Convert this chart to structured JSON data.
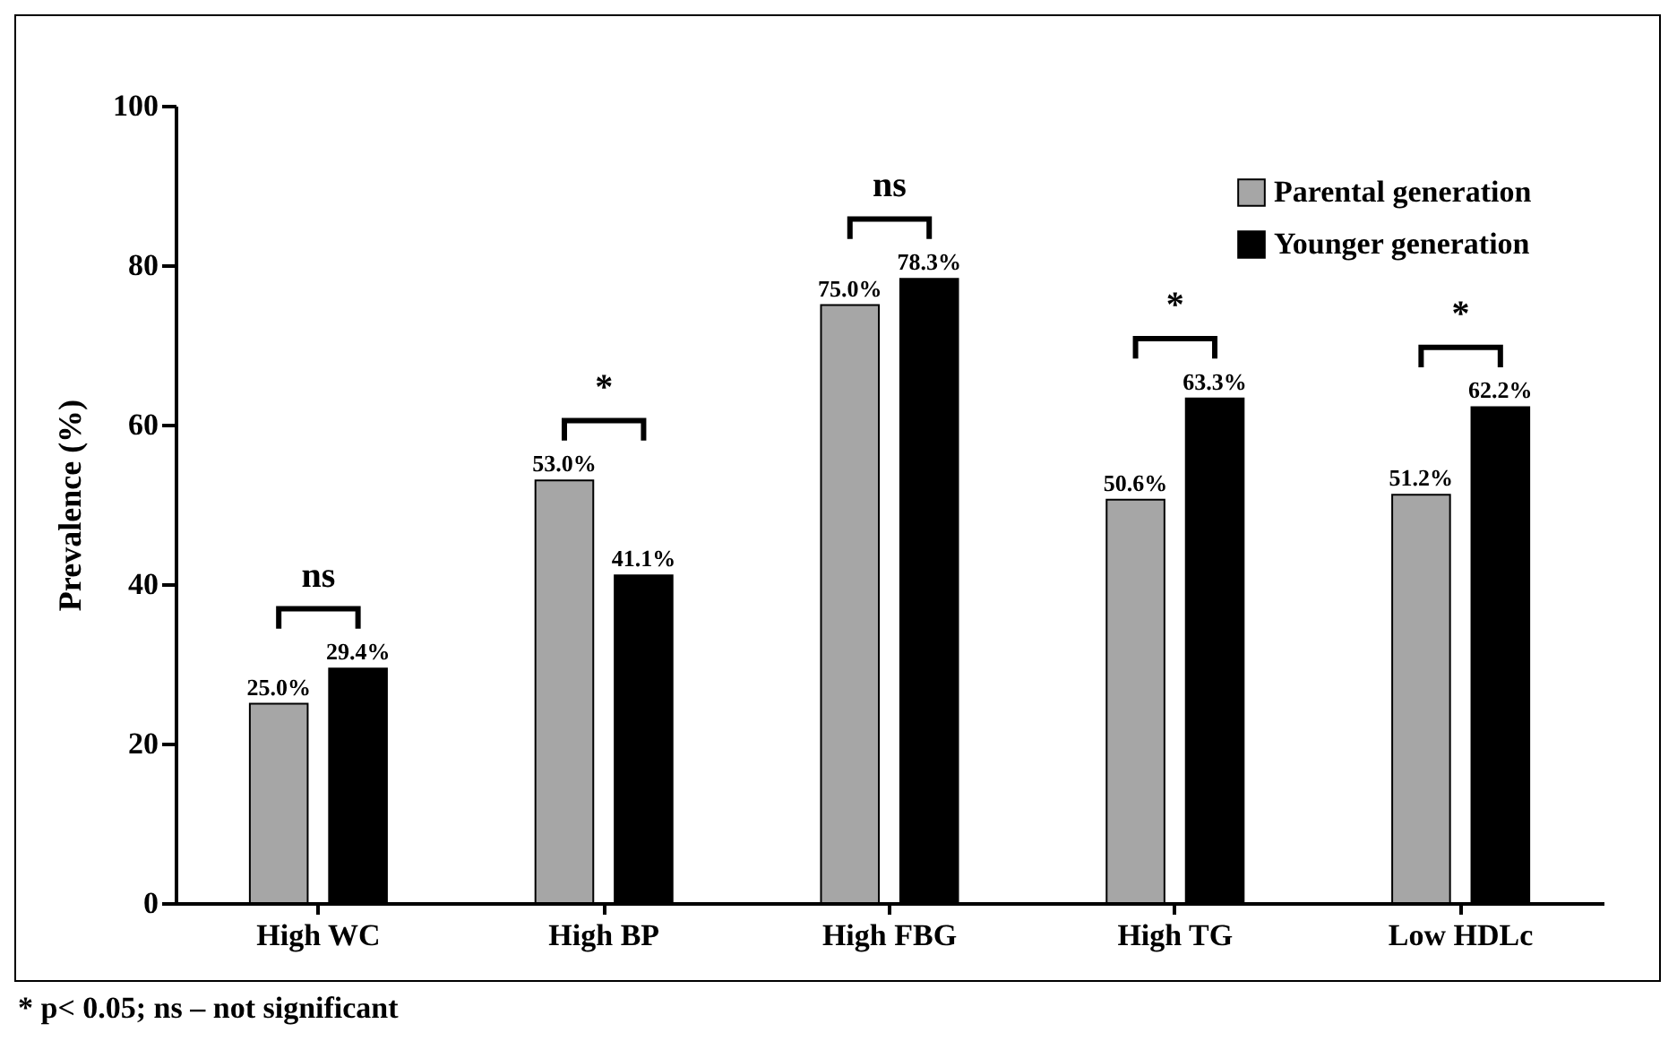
{
  "chart_data": {
    "type": "bar",
    "ylabel": "Prevalence (%)",
    "categories": [
      "High WC",
      "High BP",
      "High FBG",
      "High TG",
      "Low HDLc"
    ],
    "series": [
      {
        "name": "Parental generation",
        "color": "#a6a6a6",
        "values": [
          25.0,
          53.0,
          75.0,
          50.6,
          51.2
        ],
        "value_labels": [
          "25.0%",
          "53.0%",
          "75.0%",
          "50.6%",
          "51.2%"
        ]
      },
      {
        "name": "Younger generation",
        "color": "#000000",
        "values": [
          29.4,
          41.1,
          78.3,
          63.3,
          62.2
        ],
        "value_labels": [
          "29.4%",
          "41.1%",
          "78.3%",
          "63.3%",
          "62.2%"
        ]
      }
    ],
    "ylim": [
      0,
      100
    ],
    "yticks": [
      0,
      20,
      40,
      60,
      80,
      100
    ],
    "legend": "top right",
    "annotations": [
      "ns",
      "*",
      "ns",
      "*",
      "*",
      "* p< 0.05; ns – not significant"
    ]
  }
}
